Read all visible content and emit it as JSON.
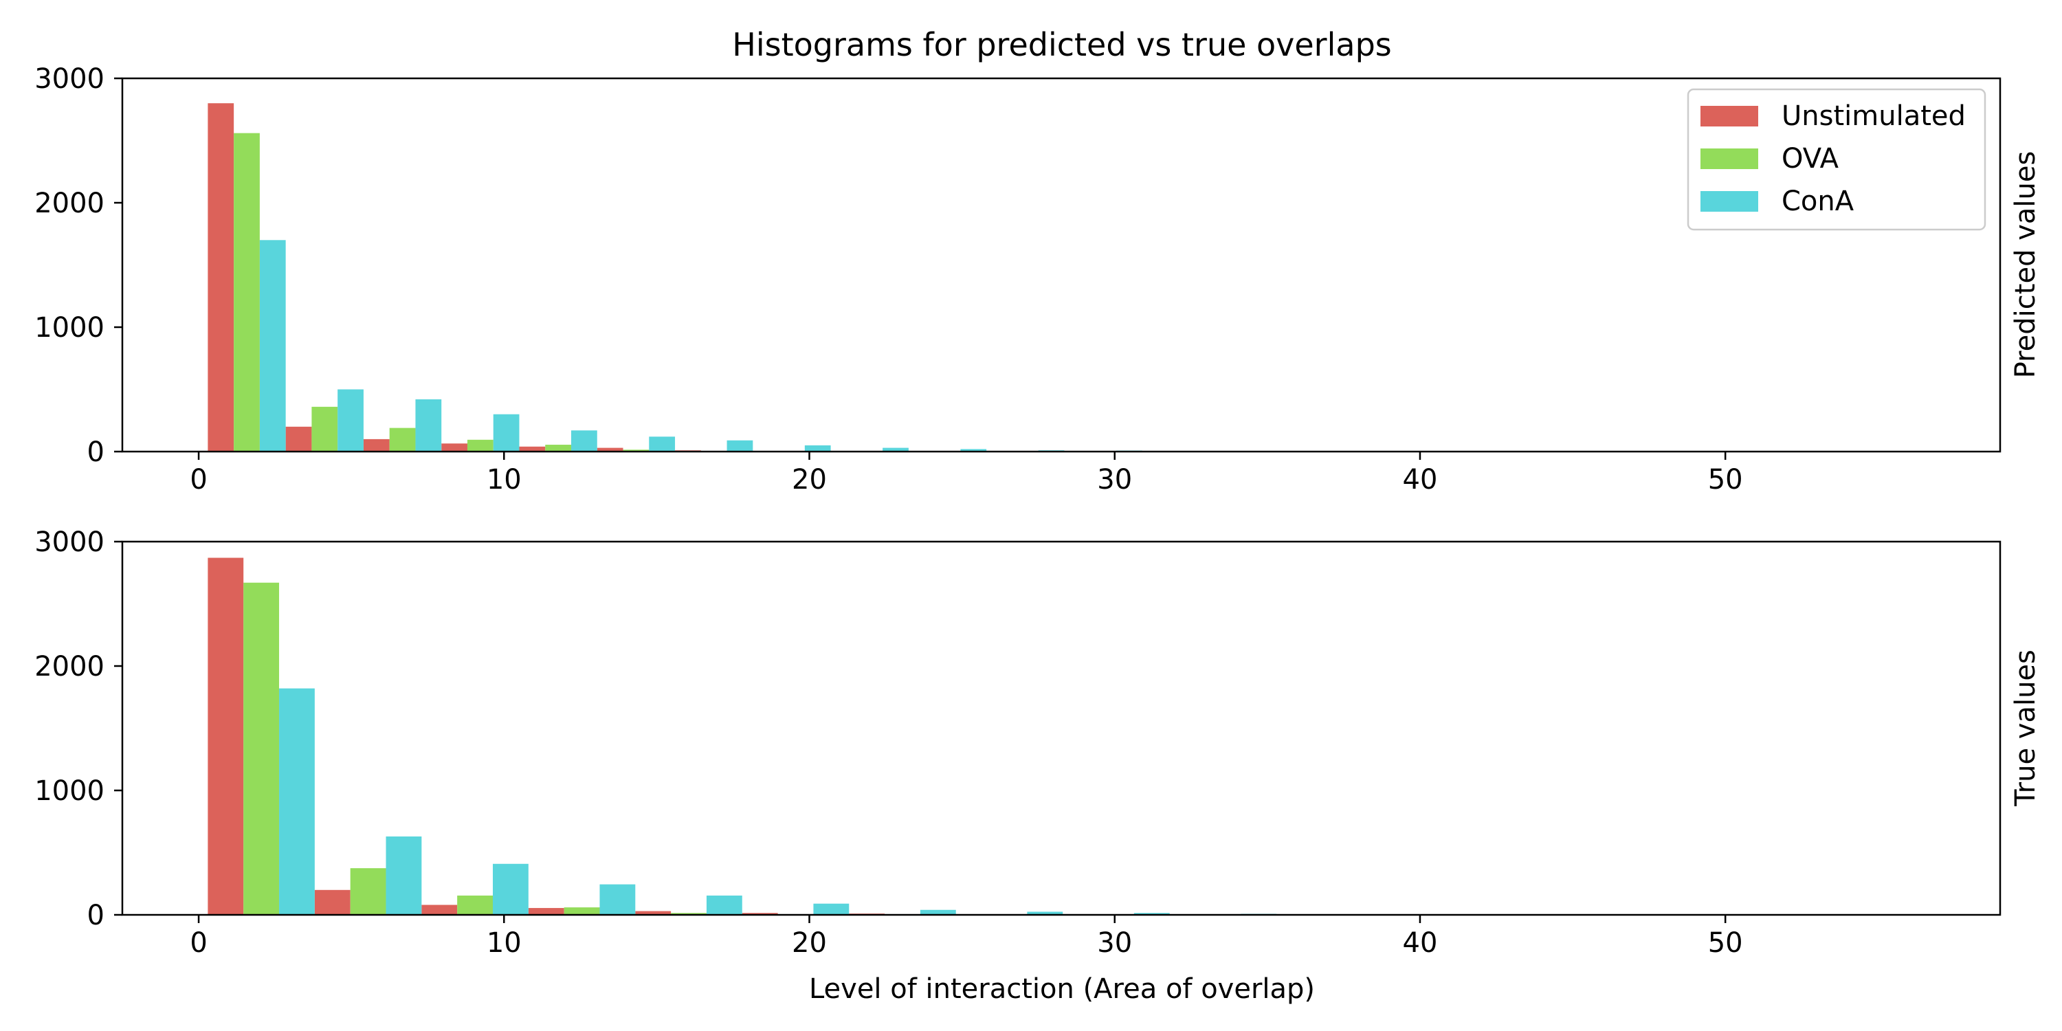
{
  "figure": {
    "title": "Histograms for predicted vs true overlaps",
    "xlabel": "Level of interaction (Area of overlap)"
  },
  "legend": {
    "placement": "top-right",
    "entries": [
      {
        "name": "Unstimulated",
        "color": "#dc625a"
      },
      {
        "name": "OVA",
        "color": "#93dc5a"
      },
      {
        "name": "ConA",
        "color": "#59d5dc"
      }
    ]
  },
  "chart_data": [
    {
      "type": "bar",
      "ylabel": "Predicted values",
      "xlim": [
        -2.5,
        59
      ],
      "ylim": [
        0,
        3000
      ],
      "xticks": [
        0,
        10,
        20,
        30,
        40,
        50
      ],
      "yticks": [
        0,
        1000,
        2000,
        3000
      ],
      "bin_start": 0.3,
      "bin_width": 2.55,
      "legend": true,
      "series": [
        {
          "name": "Unstimulated",
          "color": "#dc625a",
          "values": [
            2800,
            200,
            100,
            65,
            40,
            30,
            10,
            5,
            3,
            2,
            1,
            1
          ]
        },
        {
          "name": "OVA",
          "color": "#93dc5a",
          "values": [
            2560,
            360,
            190,
            95,
            55,
            15,
            5,
            3,
            2,
            1,
            1,
            1
          ]
        },
        {
          "name": "ConA",
          "color": "#59d5dc",
          "values": [
            1700,
            500,
            420,
            300,
            170,
            120,
            90,
            50,
            30,
            20,
            10,
            8
          ]
        }
      ]
    },
    {
      "type": "bar",
      "ylabel": "True values",
      "xlim": [
        -2.5,
        59
      ],
      "ylim": [
        0,
        3000
      ],
      "xticks": [
        0,
        10,
        20,
        30,
        40,
        50
      ],
      "yticks": [
        0,
        1000,
        2000,
        3000
      ],
      "bin_start": 0.3,
      "bin_width": 3.5,
      "legend": false,
      "series": [
        {
          "name": "Unstimulated",
          "color": "#dc625a",
          "values": [
            2870,
            200,
            80,
            55,
            30,
            15,
            10,
            5,
            2,
            1
          ]
        },
        {
          "name": "OVA",
          "color": "#93dc5a",
          "values": [
            2670,
            375,
            155,
            60,
            15,
            5,
            3,
            2,
            1,
            1
          ]
        },
        {
          "name": "ConA",
          "color": "#59d5dc",
          "values": [
            1820,
            630,
            410,
            245,
            155,
            90,
            40,
            25,
            15,
            8
          ]
        }
      ]
    }
  ]
}
